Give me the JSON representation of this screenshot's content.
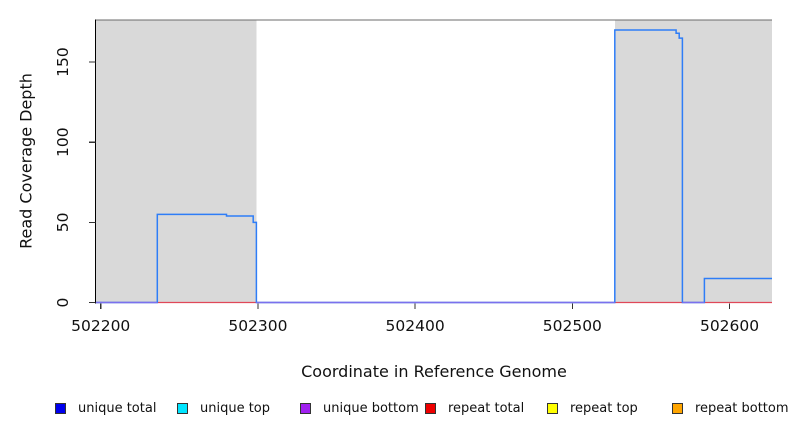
{
  "chart_data": {
    "type": "line",
    "title": "",
    "xlabel": "Coordinate in Reference Genome",
    "ylabel": "Read Coverage Depth",
    "xlim": [
      502197,
      502627
    ],
    "ylim": [
      0,
      176
    ],
    "x_ticks": [
      502200,
      502300,
      502400,
      502500,
      502600
    ],
    "x_tick_labels": [
      "502200",
      "502300",
      "502400",
      "502500",
      "502600"
    ],
    "y_ticks": [
      0,
      50,
      100,
      150
    ],
    "y_tick_labels": [
      "0",
      "50",
      "100",
      "150"
    ],
    "grid": false,
    "repeat_region_shade_color": "#d9d9d9",
    "repeat_regions": [
      [
        502197,
        502299
      ],
      [
        502527,
        502627
      ]
    ],
    "top_border_color": "#6b6b6b",
    "series": [
      {
        "name": "unique total",
        "line_color": "#2e7df7",
        "points": [
          [
            502197,
            0
          ],
          [
            502236,
            0
          ],
          [
            502236,
            55
          ],
          [
            502280,
            55
          ],
          [
            502280,
            54
          ],
          [
            502297,
            54
          ],
          [
            502297,
            50
          ],
          [
            502299,
            50
          ],
          [
            502299,
            0
          ],
          [
            502527,
            0
          ],
          [
            502527,
            170
          ],
          [
            502566,
            170
          ],
          [
            502566,
            168
          ],
          [
            502568,
            168
          ],
          [
            502568,
            165
          ],
          [
            502570,
            165
          ],
          [
            502570,
            0
          ],
          [
            502584,
            0
          ],
          [
            502584,
            15
          ],
          [
            502627,
            15
          ]
        ]
      },
      {
        "name": "repeat total",
        "line_color": "#e04858",
        "points": [
          [
            502197,
            0
          ],
          [
            502627,
            0
          ]
        ]
      }
    ],
    "zero_overlap_color": "#7b70ee",
    "zero_overlap_segments": [
      [
        502197,
        502236
      ],
      [
        502299,
        502527
      ],
      [
        502570,
        502584
      ]
    ],
    "legend_position": "bottom",
    "legend": [
      {
        "label": "unique total",
        "color": "#0000ee"
      },
      {
        "label": "unique top",
        "color": "#00e5ff"
      },
      {
        "label": "unique bottom",
        "color": "#a020f0"
      },
      {
        "label": "repeat total",
        "color": "#ee0000"
      },
      {
        "label": "repeat top",
        "color": "#ffff00"
      },
      {
        "label": "repeat bottom",
        "color": "#ffa500"
      }
    ]
  }
}
